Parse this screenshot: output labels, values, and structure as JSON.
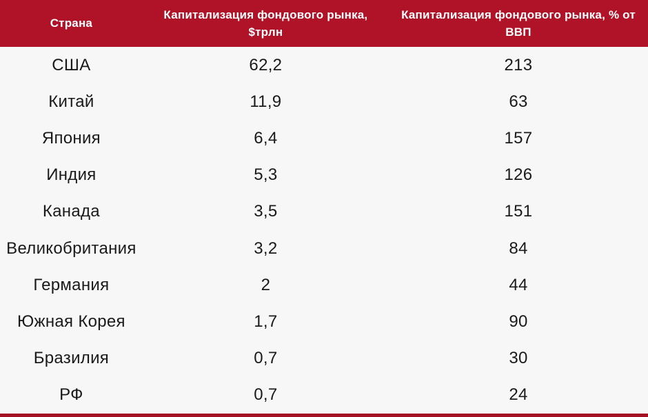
{
  "chart_data": {
    "type": "table",
    "columns": [
      "Страна",
      "Капитализация фондового рынка, $трлн",
      "Капитализация фондового рынка, % от ВВП"
    ],
    "rows": [
      [
        "США",
        "62,2",
        "213"
      ],
      [
        "Китай",
        "11,9",
        "63"
      ],
      [
        "Япония",
        "6,4",
        "157"
      ],
      [
        "Индия",
        "5,3",
        "126"
      ],
      [
        "Канада",
        "3,5",
        "151"
      ],
      [
        "Великобритания",
        "3,2",
        "84"
      ],
      [
        "Германия",
        "2",
        "44"
      ],
      [
        "Южная Корея",
        "1,7",
        "90"
      ],
      [
        "Бразилия",
        "0,7",
        "30"
      ],
      [
        "РФ",
        "0,7",
        "24"
      ]
    ],
    "categories": [
      "США",
      "Китай",
      "Япония",
      "Индия",
      "Канада",
      "Великобритания",
      "Германия",
      "Южная Корея",
      "Бразилия",
      "РФ"
    ],
    "series": [
      {
        "name": "Капитализация фондового рынка, $трлн",
        "values": [
          62.2,
          11.9,
          6.4,
          5.3,
          3.5,
          3.2,
          2,
          1.7,
          0.7,
          0.7
        ]
      },
      {
        "name": "Капитализация фондового рынка, % от ВВП",
        "values": [
          213,
          63,
          157,
          126,
          151,
          84,
          44,
          90,
          30,
          24
        ]
      }
    ],
    "decimal_separator": ","
  },
  "colors": {
    "header_bg": "#B01228",
    "header_text": "#FFFFFF",
    "body_bg": "#F7F7F7",
    "body_text": "#1A1A1A",
    "bottom_bar": "#A50F24"
  }
}
